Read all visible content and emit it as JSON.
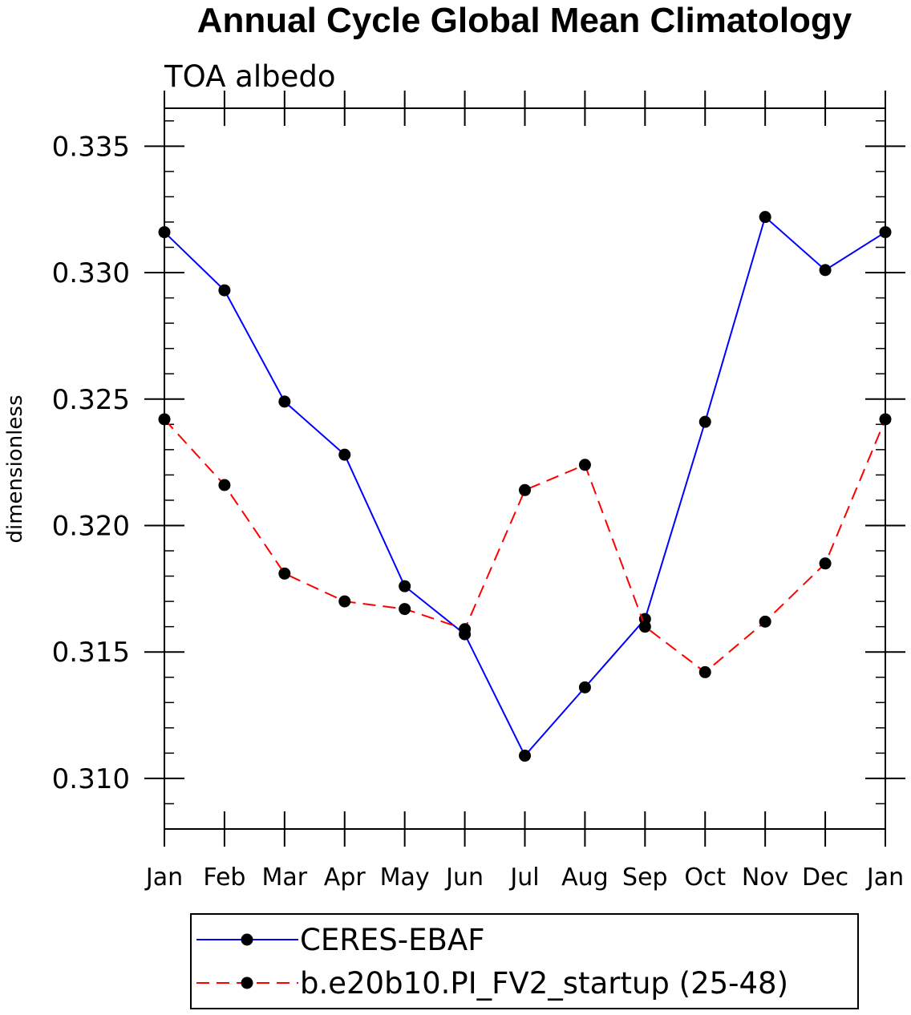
{
  "chart_data": {
    "type": "line",
    "title": "Annual Cycle Global Mean Climatology",
    "subtitle": "TOA albedo",
    "ylabel": "dimensionless",
    "xlabel": "",
    "categories": [
      "Jan",
      "Feb",
      "Mar",
      "Apr",
      "May",
      "Jun",
      "Jul",
      "Aug",
      "Sep",
      "Oct",
      "Nov",
      "Dec",
      "Jan"
    ],
    "ylim": [
      0.308,
      0.3365
    ],
    "yticks": [
      0.31,
      0.315,
      0.32,
      0.325,
      0.33,
      0.335
    ],
    "ytick_labels": [
      "0.310",
      "0.315",
      "0.320",
      "0.325",
      "0.330",
      "0.335"
    ],
    "y_minor_step": 0.001,
    "grid": false,
    "legend_position": "bottom",
    "series": [
      {
        "name": "CERES-EBAF",
        "color": "#0000ff",
        "dash": "solid",
        "marker": "circle",
        "values": [
          0.3316,
          0.3293,
          0.3249,
          0.3228,
          0.3176,
          0.3157,
          0.3109,
          0.3136,
          0.3163,
          0.3241,
          0.3322,
          0.3301,
          0.3316
        ]
      },
      {
        "name": "b.e20b10.PI_FV2_startup (25-48)",
        "color": "#ff0000",
        "dash": "dashed",
        "marker": "circle",
        "values": [
          0.3242,
          0.3216,
          0.3181,
          0.317,
          0.3167,
          0.3159,
          0.3214,
          0.3224,
          0.316,
          0.3142,
          0.3162,
          0.3185,
          0.3242
        ]
      }
    ]
  }
}
